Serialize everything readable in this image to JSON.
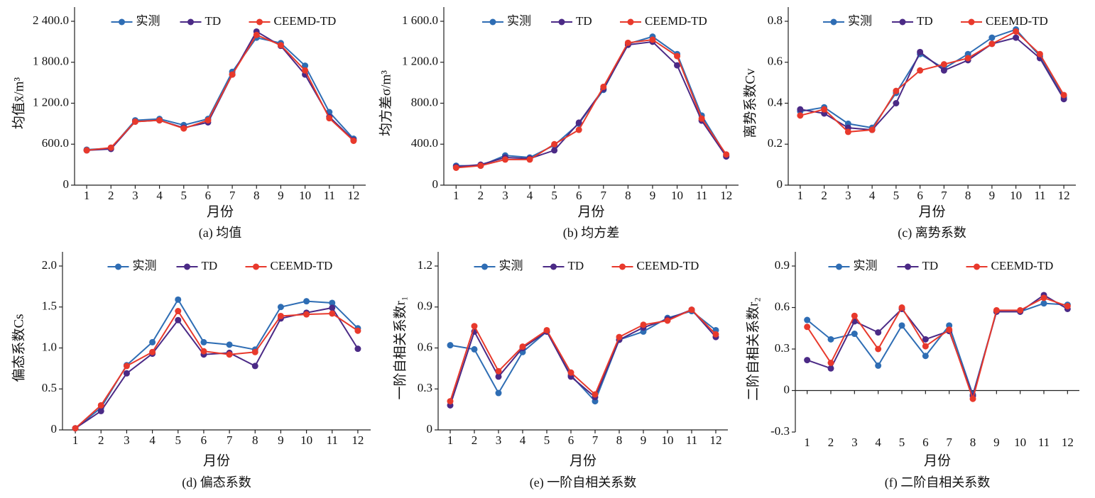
{
  "chart_data": [
    {
      "type": "line",
      "subtitle": "(a) 均值",
      "x_label": "月份",
      "y_label": "均值x̄/m³",
      "x": [
        1,
        2,
        3,
        4,
        5,
        6,
        7,
        8,
        9,
        10,
        11,
        12
      ],
      "xlim": [
        0.5,
        12.5
      ],
      "xticks": [
        1,
        2,
        3,
        4,
        5,
        6,
        7,
        8,
        9,
        10,
        11,
        12
      ],
      "ylim": [
        0,
        2400
      ],
      "yticks": [
        0,
        {
          "value": 600,
          "label": "600.0"
        },
        {
          "value": 1200,
          "label": "1 200.0"
        },
        {
          "value": 1800,
          "label": "1 800.0"
        },
        {
          "value": 2400,
          "label": "2 400.0"
        }
      ],
      "legend": "top",
      "series": [
        {
          "name": "实测",
          "color": "#2e6db4",
          "values": [
            520,
            540,
            950,
            970,
            880,
            970,
            1660,
            2160,
            2080,
            1750,
            1070,
            680
          ]
        },
        {
          "name": "TD",
          "color": "#4b2a86",
          "values": [
            510,
            530,
            930,
            950,
            840,
            920,
            1620,
            2250,
            2040,
            1620,
            1000,
            660
          ]
        },
        {
          "name": "CEEMD-TD",
          "color": "#e8392c",
          "values": [
            510,
            550,
            930,
            950,
            830,
            950,
            1620,
            2200,
            2050,
            1680,
            980,
            650
          ]
        }
      ]
    },
    {
      "type": "line",
      "subtitle": "(b) 均方差",
      "x_label": "月份",
      "y_label": "均方差σ/m³",
      "x": [
        1,
        2,
        3,
        4,
        5,
        6,
        7,
        8,
        9,
        10,
        11,
        12
      ],
      "xlim": [
        0.5,
        12.5
      ],
      "xticks": [
        1,
        2,
        3,
        4,
        5,
        6,
        7,
        8,
        9,
        10,
        11,
        12
      ],
      "ylim": [
        0,
        1600
      ],
      "yticks": [
        0,
        {
          "value": 400,
          "label": "400.0"
        },
        {
          "value": 800,
          "label": "800.0"
        },
        {
          "value": 1200,
          "label": "1 200.0"
        },
        {
          "value": 1600,
          "label": "1 600.0"
        }
      ],
      "legend": "top",
      "series": [
        {
          "name": "实测",
          "color": "#2e6db4",
          "values": [
            190,
            190,
            290,
            270,
            390,
            600,
            930,
            1380,
            1450,
            1280,
            680,
            290
          ]
        },
        {
          "name": "TD",
          "color": "#4b2a86",
          "values": [
            180,
            200,
            270,
            260,
            340,
            610,
            940,
            1370,
            1400,
            1170,
            630,
            280
          ]
        },
        {
          "name": "CEEMD-TD",
          "color": "#e8392c",
          "values": [
            170,
            190,
            250,
            250,
            400,
            540,
            960,
            1390,
            1420,
            1260,
            650,
            300
          ]
        }
      ]
    },
    {
      "type": "line",
      "subtitle": "(c) 离势系数",
      "x_label": "月份",
      "y_label": "离势系数Cv",
      "x": [
        1,
        2,
        3,
        4,
        5,
        6,
        7,
        8,
        9,
        10,
        11,
        12
      ],
      "xlim": [
        0.5,
        12.5
      ],
      "xticks": [
        1,
        2,
        3,
        4,
        5,
        6,
        7,
        8,
        9,
        10,
        11,
        12
      ],
      "ylim": [
        0,
        0.8
      ],
      "yticks": [
        0,
        0.2,
        0.4,
        0.6,
        0.8
      ],
      "legend": "top",
      "series": [
        {
          "name": "实测",
          "color": "#2e6db4",
          "values": [
            0.36,
            0.38,
            0.3,
            0.28,
            0.45,
            0.64,
            0.57,
            0.64,
            0.72,
            0.76,
            0.63,
            0.43
          ]
        },
        {
          "name": "TD",
          "color": "#4b2a86",
          "values": [
            0.37,
            0.35,
            0.28,
            0.27,
            0.4,
            0.65,
            0.56,
            0.61,
            0.69,
            0.72,
            0.62,
            0.42
          ]
        },
        {
          "name": "CEEMD-TD",
          "color": "#e8392c",
          "values": [
            0.34,
            0.37,
            0.26,
            0.27,
            0.46,
            0.56,
            0.59,
            0.62,
            0.69,
            0.75,
            0.64,
            0.44
          ]
        }
      ]
    },
    {
      "type": "line",
      "subtitle": "(d) 偏态系数",
      "x_label": "月份",
      "y_label": "偏态系数Cs",
      "x": [
        1,
        2,
        3,
        4,
        5,
        6,
        7,
        8,
        9,
        10,
        11,
        12
      ],
      "xlim": [
        0.5,
        12.5
      ],
      "xticks": [
        1,
        2,
        3,
        4,
        5,
        6,
        7,
        8,
        9,
        10,
        11,
        12
      ],
      "ylim": [
        0,
        2.0
      ],
      "yticks": [
        0,
        0.5,
        {
          "value": 1.0,
          "label": "1.0"
        },
        1.5,
        {
          "value": 2.0,
          "label": "2.0"
        }
      ],
      "legend": "top",
      "series": [
        {
          "name": "实测",
          "color": "#2e6db4",
          "values": [
            0.02,
            0.27,
            0.79,
            1.07,
            1.59,
            1.07,
            1.04,
            0.98,
            1.5,
            1.57,
            1.55,
            1.24
          ]
        },
        {
          "name": "TD",
          "color": "#4b2a86",
          "values": [
            0.02,
            0.23,
            0.69,
            0.93,
            1.34,
            0.92,
            0.94,
            0.78,
            1.36,
            1.43,
            1.49,
            0.99
          ]
        },
        {
          "name": "CEEMD-TD",
          "color": "#e8392c",
          "values": [
            0.02,
            0.3,
            0.78,
            0.95,
            1.45,
            0.96,
            0.92,
            0.95,
            1.39,
            1.41,
            1.42,
            1.21
          ]
        }
      ]
    },
    {
      "type": "line",
      "subtitle": "(e) 一阶自相关系数",
      "x_label": "月份",
      "y_label": "一阶自相关系数r₁",
      "x": [
        1,
        2,
        3,
        4,
        5,
        6,
        7,
        8,
        9,
        10,
        11,
        12
      ],
      "xlim": [
        0.5,
        12.5
      ],
      "xticks": [
        1,
        2,
        3,
        4,
        5,
        6,
        7,
        8,
        9,
        10,
        11,
        12
      ],
      "ylim": [
        0,
        1.2
      ],
      "yticks": [
        0,
        0.3,
        0.6,
        0.9,
        1.2
      ],
      "legend": "top",
      "series": [
        {
          "name": "实测",
          "color": "#2e6db4",
          "values": [
            0.62,
            0.59,
            0.27,
            0.57,
            0.72,
            0.4,
            0.21,
            0.66,
            0.72,
            0.82,
            0.87,
            0.73
          ]
        },
        {
          "name": "TD",
          "color": "#4b2a86",
          "values": [
            0.18,
            0.72,
            0.39,
            0.6,
            0.72,
            0.39,
            0.24,
            0.66,
            0.75,
            0.81,
            0.88,
            0.68
          ]
        },
        {
          "name": "CEEMD-TD",
          "color": "#e8392c",
          "values": [
            0.21,
            0.76,
            0.43,
            0.61,
            0.73,
            0.42,
            0.26,
            0.68,
            0.77,
            0.8,
            0.88,
            0.7
          ]
        }
      ]
    },
    {
      "type": "line",
      "subtitle": "(f) 二阶自相关系数",
      "x_label": "月份",
      "y_label": "二阶自相关系数r₂",
      "x": [
        1,
        2,
        3,
        4,
        5,
        6,
        7,
        8,
        9,
        10,
        11,
        12
      ],
      "xlim": [
        0.5,
        12.5
      ],
      "xticks": [
        1,
        2,
        3,
        4,
        5,
        6,
        7,
        8,
        9,
        10,
        11,
        12
      ],
      "ylim": [
        -0.3,
        0.9
      ],
      "yticks": [
        -0.3,
        0,
        0.3,
        0.6,
        0.9
      ],
      "legend": "top",
      "series": [
        {
          "name": "实测",
          "color": "#2e6db4",
          "values": [
            0.51,
            0.37,
            0.41,
            0.18,
            0.47,
            0.25,
            0.47,
            -0.03,
            0.57,
            0.57,
            0.63,
            0.62
          ]
        },
        {
          "name": "TD",
          "color": "#4b2a86",
          "values": [
            0.22,
            0.16,
            0.5,
            0.42,
            0.59,
            0.37,
            0.43,
            -0.04,
            0.57,
            0.57,
            0.69,
            0.59
          ]
        },
        {
          "name": "CEEMD-TD",
          "color": "#e8392c",
          "values": [
            0.46,
            0.2,
            0.54,
            0.3,
            0.6,
            0.32,
            0.44,
            -0.06,
            0.58,
            0.58,
            0.67,
            0.61
          ]
        }
      ]
    }
  ]
}
